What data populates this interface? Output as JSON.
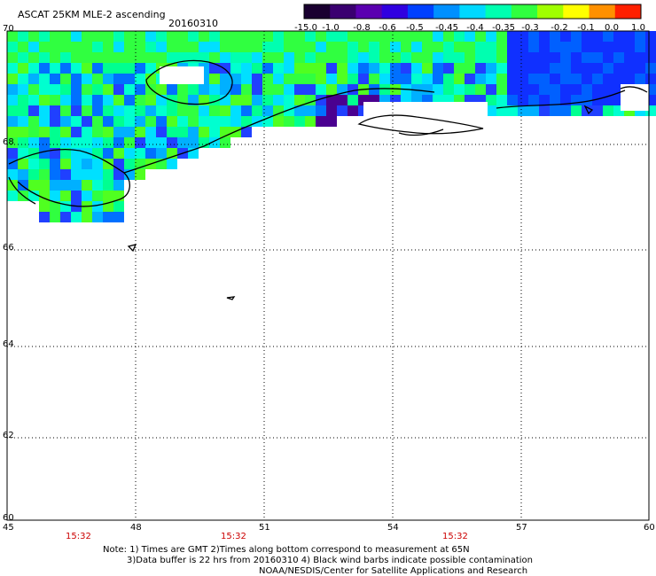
{
  "header": {
    "title": "ASCAT 25KM MLE-2 ascending",
    "date": "20160310"
  },
  "colorbar": {
    "ticks": [
      "-15.0",
      "-1.0",
      "-0.8",
      "-0.6",
      "-0.5",
      "-0.45",
      "-0.4",
      "-0.35",
      "-0.3",
      "-0.2",
      "-0.1",
      "0.0",
      "1.0"
    ],
    "colors": [
      "#1a0030",
      "#3a0070",
      "#5a00b0",
      "#3000e0",
      "#0040ff",
      "#0090ff",
      "#00d8ff",
      "#00ffb0",
      "#30ff40",
      "#a0ff00",
      "#ffff00",
      "#ff9000",
      "#ff2000"
    ]
  },
  "axes": {
    "lat_labels": [
      "70",
      "68",
      "66",
      "64",
      "62",
      "60"
    ],
    "lon_labels": [
      "45",
      "48",
      "51",
      "54",
      "57",
      "60"
    ]
  },
  "times": [
    "15:32",
    "15:32",
    "15:32"
  ],
  "notes": {
    "line1": "Note: 1) Times are GMT 2)Times along bottom correspond to measurement at 65N",
    "line2": "3)Data buffer is 22 hrs from 20160310 4) Black wind barbs indicate possible contamination",
    "line3": "NOAA/NESDIS/Center for Satellite Applications and Research"
  }
}
